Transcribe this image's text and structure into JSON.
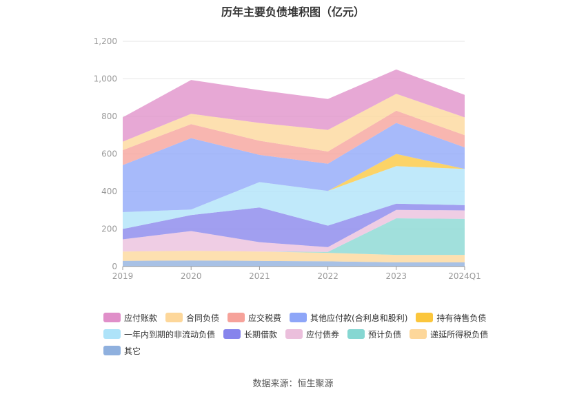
{
  "title": "历年主要负债堆积图（亿元）",
  "source": "数据来源：恒生聚源",
  "chart_data": {
    "type": "area",
    "stacked": true,
    "categories": [
      "2019",
      "2020",
      "2021",
      "2022",
      "2023",
      "2024Q1"
    ],
    "yticks": [
      "0",
      "200",
      "400",
      "600",
      "800",
      "1,000",
      "1,200"
    ],
    "ylim": [
      0,
      1200
    ],
    "grid": true,
    "legend_position": "bottom",
    "series": [
      {
        "name": "其它",
        "color": "#8fb0de",
        "values": [
          30,
          32,
          30,
          28,
          22,
          22
        ]
      },
      {
        "name": "递延所得税负债",
        "color": "#fdd79a",
        "values": [
          50,
          52,
          50,
          45,
          40,
          40
        ]
      },
      {
        "name": "预计负债",
        "color": "#86d7d2",
        "values": [
          0,
          0,
          0,
          5,
          195,
          192
        ]
      },
      {
        "name": "应付债券",
        "color": "#ebbfdc",
        "values": [
          65,
          105,
          50,
          25,
          45,
          45
        ]
      },
      {
        "name": "长期借款",
        "color": "#8684ec",
        "values": [
          55,
          85,
          185,
          115,
          33,
          28
        ]
      },
      {
        "name": "一年内到期的非流动负债",
        "color": "#aee3f9",
        "values": [
          90,
          30,
          135,
          185,
          200,
          193
        ]
      },
      {
        "name": "持有待售负债",
        "color": "#fbc63c",
        "values": [
          0,
          0,
          0,
          0,
          65,
          0
        ]
      },
      {
        "name": "其他应付款(合利息和股利)",
        "color": "#8ea6f8",
        "values": [
          250,
          380,
          145,
          145,
          165,
          115
        ]
      },
      {
        "name": "应交税费",
        "color": "#f6a29a",
        "values": [
          80,
          75,
          75,
          65,
          65,
          65
        ]
      },
      {
        "name": "合同负债",
        "color": "#fdd79a",
        "values": [
          45,
          55,
          95,
          115,
          90,
          95
        ]
      },
      {
        "name": "应付账款",
        "color": "#e08fc9",
        "values": [
          130,
          180,
          175,
          165,
          130,
          120
        ]
      }
    ]
  },
  "legend_rows": [
    [
      {
        "label": "应付账款",
        "color": "#e08fc9"
      },
      {
        "label": "合同负债",
        "color": "#fdd79a"
      },
      {
        "label": "应交税费",
        "color": "#f6a29a"
      },
      {
        "label": "其他应付款(合利息和股利)",
        "color": "#8ea6f8"
      },
      {
        "label": "持有待售负债",
        "color": "#fbc63c"
      }
    ],
    [
      {
        "label": "一年内到期的非流动负债",
        "color": "#aee3f9"
      },
      {
        "label": "长期借款",
        "color": "#8684ec"
      },
      {
        "label": "应付债券",
        "color": "#ebbfdc"
      },
      {
        "label": "预计负债",
        "color": "#86d7d2"
      },
      {
        "label": "递延所得税负债",
        "color": "#fdd79a"
      }
    ],
    [
      {
        "label": "其它",
        "color": "#8fb0de"
      }
    ]
  ]
}
